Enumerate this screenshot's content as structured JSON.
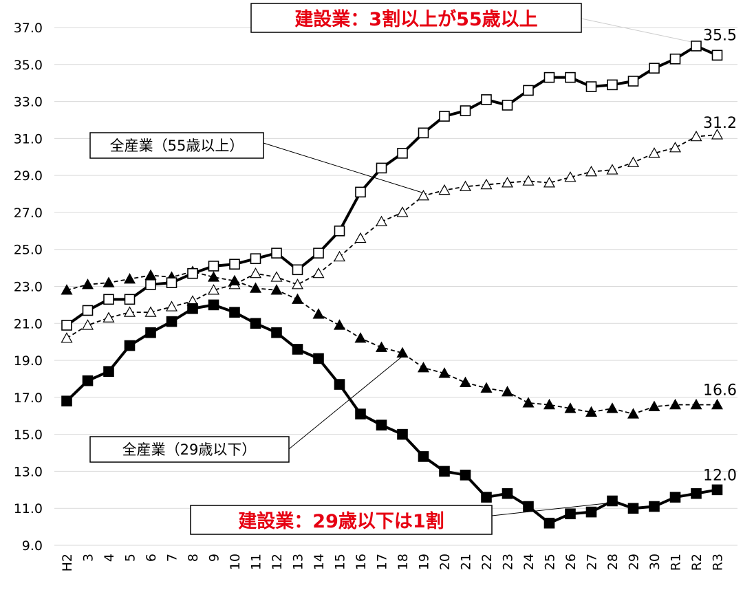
{
  "chart_data": {
    "type": "line",
    "categories": [
      "H2",
      "3",
      "4",
      "5",
      "6",
      "7",
      "8",
      "9",
      "10",
      "11",
      "12",
      "13",
      "14",
      "15",
      "16",
      "17",
      "18",
      "19",
      "20",
      "21",
      "22",
      "23",
      "24",
      "25",
      "26",
      "27",
      "28",
      "29",
      "30",
      "R1",
      "R2",
      "R3"
    ],
    "ylim": [
      9.0,
      37.0
    ],
    "yticks": [
      "9.0",
      "11.0",
      "13.0",
      "15.0",
      "17.0",
      "19.0",
      "21.0",
      "23.0",
      "25.0",
      "27.0",
      "29.0",
      "31.0",
      "33.0",
      "35.0",
      "37.0"
    ],
    "grid": true,
    "series": [
      {
        "key": "construction_55",
        "style": "solid-open-square",
        "values": [
          20.9,
          21.7,
          22.3,
          22.3,
          23.1,
          23.2,
          23.7,
          24.1,
          24.2,
          24.5,
          24.8,
          23.9,
          24.8,
          26.0,
          28.1,
          29.4,
          30.2,
          31.3,
          32.2,
          32.5,
          33.1,
          32.8,
          33.6,
          34.3,
          34.3,
          33.8,
          33.9,
          34.1,
          34.8,
          35.3,
          36.0,
          35.5
        ],
        "end_label": "35.5"
      },
      {
        "key": "all_industries_55",
        "style": "dashed-open-triangle",
        "values": [
          20.2,
          20.9,
          21.3,
          21.6,
          21.6,
          21.9,
          22.2,
          22.8,
          23.1,
          23.7,
          23.5,
          23.1,
          23.7,
          24.6,
          25.6,
          26.5,
          27.0,
          27.9,
          28.2,
          28.4,
          28.5,
          28.6,
          28.7,
          28.6,
          28.9,
          29.2,
          29.3,
          29.7,
          30.2,
          30.5,
          31.1,
          31.2
        ],
        "end_label": "31.2"
      },
      {
        "key": "all_industries_29",
        "style": "dashed-filled-triangle",
        "values": [
          22.8,
          23.1,
          23.2,
          23.4,
          23.6,
          23.5,
          23.8,
          23.5,
          23.3,
          22.9,
          22.8,
          22.3,
          21.5,
          20.9,
          20.2,
          19.7,
          19.4,
          18.6,
          18.3,
          17.8,
          17.5,
          17.3,
          16.7,
          16.6,
          16.4,
          16.2,
          16.4,
          16.1,
          16.5,
          16.6,
          16.6,
          16.6
        ],
        "end_label": "16.6"
      },
      {
        "key": "construction_29",
        "style": "solid-filled-square",
        "values": [
          16.8,
          17.9,
          18.4,
          19.8,
          20.5,
          21.1,
          21.8,
          22.0,
          21.6,
          21.0,
          20.5,
          19.6,
          19.1,
          17.7,
          16.1,
          15.5,
          15.0,
          13.8,
          13.0,
          12.8,
          11.6,
          11.8,
          11.1,
          10.2,
          10.7,
          10.8,
          11.4,
          11.0,
          11.1,
          11.6,
          11.8,
          12.0
        ],
        "end_label": "12.0"
      }
    ],
    "annotations": [
      {
        "key": "anno_construction_55",
        "text": "建設業：3割以上が55歳以上",
        "color": "#e60012"
      },
      {
        "key": "anno_all_55",
        "text": "全産業（55歳以上）",
        "color": "#000000"
      },
      {
        "key": "anno_all_29",
        "text": "全産業（29歳以下）",
        "color": "#000000"
      },
      {
        "key": "anno_construction_29",
        "text": "建設業：29歳以下は1割",
        "color": "#e60012"
      }
    ]
  }
}
